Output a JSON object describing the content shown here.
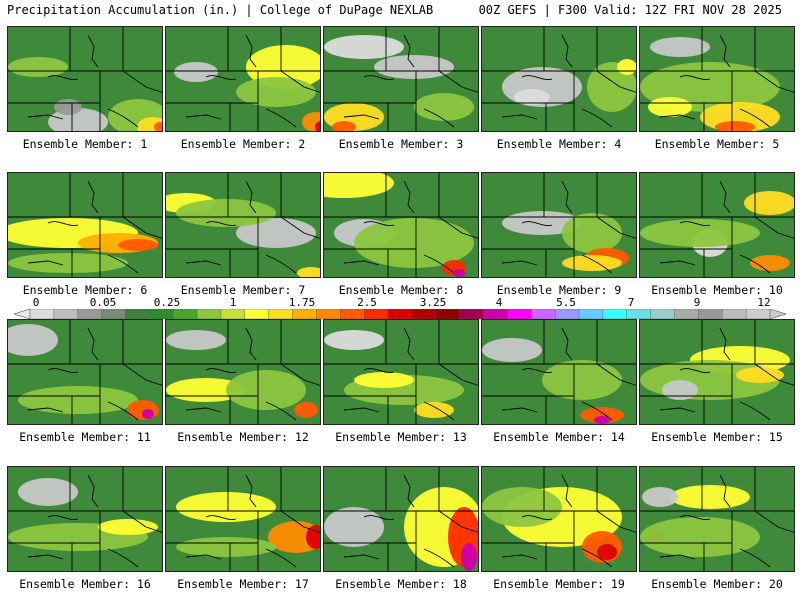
{
  "header": {
    "title": "Precipitation Accumulation (in.) | College of DuPage NEXLAB",
    "run_info": "00Z GEFS | F300 Valid: 12Z FRI NOV 28 2025"
  },
  "colorbar": {
    "labels": [
      "0",
      "0.05",
      "0.25",
      "1",
      "1.75",
      "2.5",
      "3.25",
      "4",
      "5.5",
      "7",
      "9",
      "12"
    ],
    "colors": [
      "#dcdcdc",
      "#bdbdbd",
      "#9a9a9a",
      "#7a8a7a",
      "#3f7f3f",
      "#2e8b2e",
      "#4ca52c",
      "#8cc63f",
      "#c6df3a",
      "#ffff33",
      "#ffdd22",
      "#ffb000",
      "#ff8a00",
      "#ff5a00",
      "#ff2a00",
      "#dd0000",
      "#b00000",
      "#8b0000",
      "#a00050",
      "#cc00aa",
      "#ff00ff",
      "#cc66ff",
      "#9999ff",
      "#66ccff",
      "#33ffff",
      "#66e0e0",
      "#99cccc",
      "#aaaaaa",
      "#999999",
      "#bbbbbb",
      "#cccccc"
    ]
  },
  "members": [
    {
      "caption": "Ensemble Member: 1"
    },
    {
      "caption": "Ensemble Member: 2"
    },
    {
      "caption": "Ensemble Member: 3"
    },
    {
      "caption": "Ensemble Member: 4"
    },
    {
      "caption": "Ensemble Member: 5"
    },
    {
      "caption": "Ensemble Member: 6"
    },
    {
      "caption": "Ensemble Member: 7"
    },
    {
      "caption": "Ensemble Member: 8"
    },
    {
      "caption": "Ensemble Member: 9"
    },
    {
      "caption": "Ensemble Member: 10"
    },
    {
      "caption": "Ensemble Member: 11"
    },
    {
      "caption": "Ensemble Member: 12"
    },
    {
      "caption": "Ensemble Member: 13"
    },
    {
      "caption": "Ensemble Member: 14"
    },
    {
      "caption": "Ensemble Member: 15"
    },
    {
      "caption": "Ensemble Member: 16"
    },
    {
      "caption": "Ensemble Member: 17"
    },
    {
      "caption": "Ensemble Member: 18"
    },
    {
      "caption": "Ensemble Member: 19"
    },
    {
      "caption": "Ensemble Member: 20"
    }
  ]
}
